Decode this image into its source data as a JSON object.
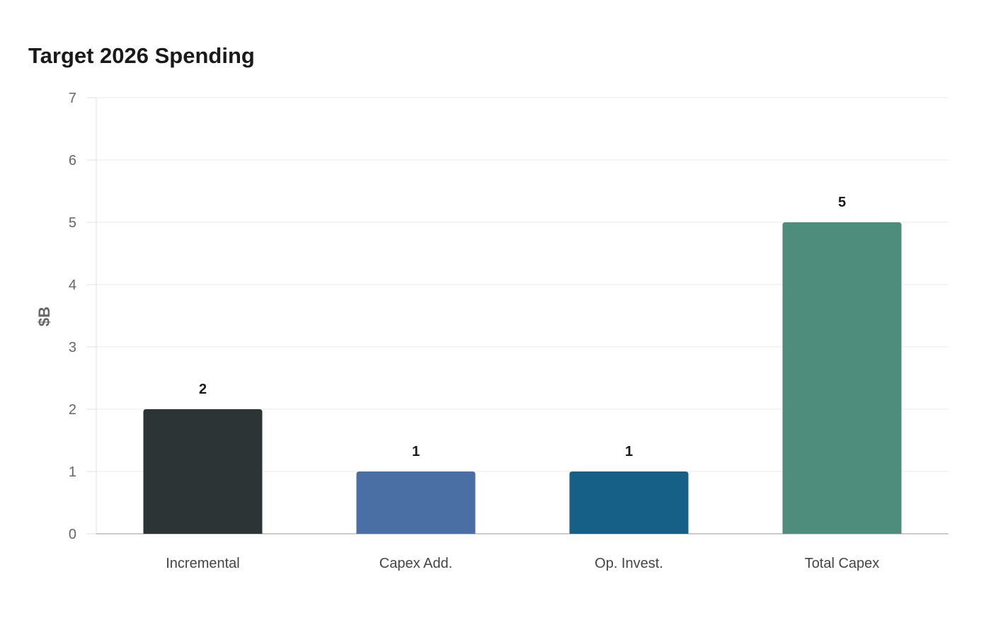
{
  "chart_data": {
    "type": "bar",
    "title": "Target 2026 Spending",
    "xlabel": "",
    "ylabel": "$B",
    "categories": [
      "Incremental",
      "Capex Add.",
      "Op. Invest.",
      "Total Capex"
    ],
    "values": [
      2,
      1,
      1,
      5
    ],
    "colors": [
      "#2d3436",
      "#4a6fa5",
      "#166088",
      "#4e8d7c"
    ],
    "ylim": [
      0,
      7
    ],
    "yticks": [
      0,
      1,
      2,
      3,
      4,
      5,
      6,
      7
    ],
    "grid": true,
    "legend": "none"
  }
}
